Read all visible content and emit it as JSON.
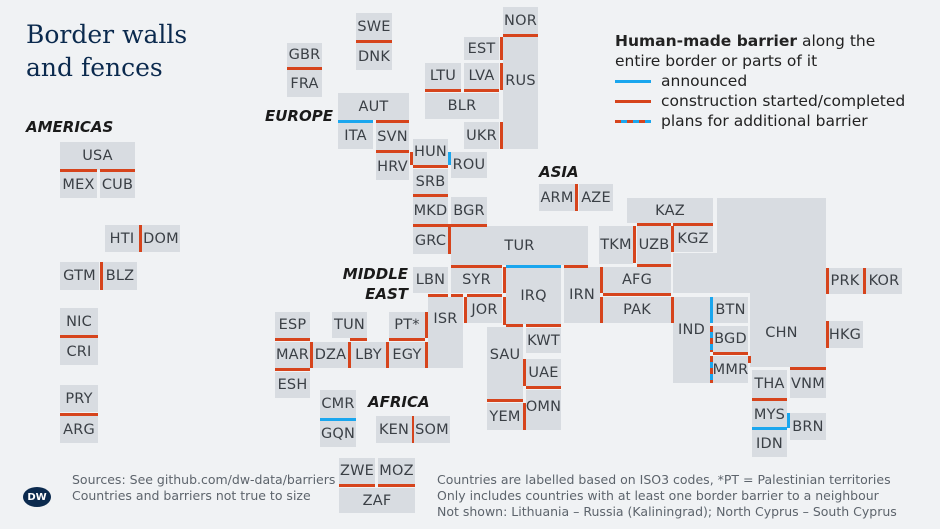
{
  "title": "Border walls and fences",
  "regions": {
    "americas": "AMERICAS",
    "europe": "EUROPE",
    "asia": "ASIA",
    "middle_east": "MIDDLE EAST",
    "africa": "AFRICA"
  },
  "legend": {
    "heading_bold": "Human-made barrier",
    "heading_rest": " along the entire border or parts of it",
    "items": [
      {
        "label": "announced",
        "status": "announced"
      },
      {
        "label": "construction started/completed",
        "status": "built"
      },
      {
        "label": "plans for additional barrier",
        "status": "mixed"
      }
    ]
  },
  "colors": {
    "announced": "#1aa6ee",
    "built": "#d6441c",
    "tile": "#d8dce1",
    "title": "#0b2a4e"
  },
  "countries": [
    "USA",
    "MEX",
    "CUB",
    "HTI",
    "DOM",
    "GTM",
    "BLZ",
    "NIC",
    "CRI",
    "PRY",
    "ARG",
    "GBR",
    "FRA",
    "SWE",
    "DNK",
    "NOR",
    "EST",
    "LTU",
    "LVA",
    "BLR",
    "RUS",
    "UKR",
    "AUT",
    "ITA",
    "SVN",
    "HRV",
    "HUN",
    "ROU",
    "SRB",
    "MKD",
    "BGR",
    "GRC",
    "TUR",
    "ARM",
    "AZE",
    "LBN",
    "SYR",
    "ISR",
    "JOR",
    "IRQ",
    "IRN",
    "PT*",
    "SAU",
    "KWT",
    "UAE",
    "OMN",
    "YEM",
    "ESP",
    "MAR",
    "ESH",
    "TUN",
    "DZA",
    "LBY",
    "EGY",
    "CMR",
    "GQN",
    "KEN",
    "SOM",
    "ZWE",
    "MOZ",
    "ZAF",
    "KAZ",
    "TKM",
    "UZB",
    "KGZ",
    "CHN",
    "AFG",
    "PAK",
    "IND",
    "BTN",
    "BGD",
    "MMR",
    "PRK",
    "KOR",
    "HKG",
    "THA",
    "VNM",
    "MYS",
    "BRN",
    "IDN"
  ],
  "barriers": [
    [
      "USA",
      "MEX",
      "built"
    ],
    [
      "USA",
      "CUB",
      "built"
    ],
    [
      "HTI",
      "DOM",
      "built"
    ],
    [
      "GTM",
      "BLZ",
      "built"
    ],
    [
      "NIC",
      "CRI",
      "built"
    ],
    [
      "PRY",
      "ARG",
      "built"
    ],
    [
      "GBR",
      "FRA",
      "built"
    ],
    [
      "SWE",
      "DNK",
      "built"
    ],
    [
      "NOR",
      "RUS",
      "built"
    ],
    [
      "EST",
      "RUS",
      "built"
    ],
    [
      "LVA",
      "RUS",
      "built"
    ],
    [
      "LTU",
      "BLR",
      "built"
    ],
    [
      "LVA",
      "BLR",
      "built"
    ],
    [
      "UKR",
      "RUS",
      "built"
    ],
    [
      "AUT",
      "ITA",
      "announced"
    ],
    [
      "AUT",
      "SVN",
      "built"
    ],
    [
      "SVN",
      "HRV",
      "built"
    ],
    [
      "HRV",
      "HUN",
      "built"
    ],
    [
      "HUN",
      "ROU",
      "announced"
    ],
    [
      "HUN",
      "SRB",
      "built"
    ],
    [
      "SRB",
      "MKD",
      "built"
    ],
    [
      "MKD",
      "GRC",
      "built"
    ],
    [
      "BGR",
      "TUR",
      "built"
    ],
    [
      "GRC",
      "TUR",
      "built"
    ],
    [
      "ARM",
      "AZE",
      "built"
    ],
    [
      "TUR",
      "SYR",
      "built"
    ],
    [
      "TUR",
      "IRQ",
      "announced"
    ],
    [
      "TUR",
      "IRN",
      "built"
    ],
    [
      "LBN",
      "ISR",
      "built"
    ],
    [
      "SYR",
      "ISR",
      "built"
    ],
    [
      "SYR",
      "JOR",
      "built"
    ],
    [
      "SYR",
      "IRQ",
      "built"
    ],
    [
      "ISR",
      "JOR",
      "built"
    ],
    [
      "JOR",
      "IRQ",
      "built"
    ],
    [
      "IRQ",
      "SAU",
      "built"
    ],
    [
      "IRQ",
      "KWT",
      "built"
    ],
    [
      "SAU",
      "UAE",
      "built"
    ],
    [
      "UAE",
      "OMN",
      "built"
    ],
    [
      "SAU",
      "YEM",
      "built"
    ],
    [
      "YEM",
      "OMN",
      "built"
    ],
    [
      "PT*",
      "ISR",
      "built"
    ],
    [
      "PT*",
      "EGY",
      "built"
    ],
    [
      "EGY",
      "ISR",
      "built"
    ],
    [
      "ESP",
      "MAR",
      "built"
    ],
    [
      "MAR",
      "ESH",
      "built"
    ],
    [
      "MAR",
      "DZA",
      "built"
    ],
    [
      "TUN",
      "LBY",
      "built"
    ],
    [
      "DZA",
      "LBY",
      "built"
    ],
    [
      "LBY",
      "EGY",
      "built"
    ],
    [
      "CMR",
      "GQN",
      "announced"
    ],
    [
      "KEN",
      "SOM",
      "built"
    ],
    [
      "ZWE",
      "ZAF",
      "built"
    ],
    [
      "MOZ",
      "ZAF",
      "built"
    ],
    [
      "KAZ",
      "UZB",
      "built"
    ],
    [
      "KAZ",
      "KGZ",
      "built"
    ],
    [
      "TKM",
      "UZB",
      "built"
    ],
    [
      "UZB",
      "KGZ",
      "built"
    ],
    [
      "UZB",
      "AFG",
      "built"
    ],
    [
      "IRN",
      "AFG",
      "built"
    ],
    [
      "IRN",
      "PAK",
      "built"
    ],
    [
      "AFG",
      "PAK",
      "built"
    ],
    [
      "PAK",
      "IND",
      "built"
    ],
    [
      "IND",
      "BTN",
      "announced"
    ],
    [
      "IND",
      "BGD",
      "mixed"
    ],
    [
      "IND",
      "MMR",
      "mixed"
    ],
    [
      "BGD",
      "MMR",
      "built"
    ],
    [
      "CHN",
      "MMR",
      "built"
    ],
    [
      "CHN",
      "PRK",
      "built"
    ],
    [
      "PRK",
      "KOR",
      "built"
    ],
    [
      "CHN",
      "HKG",
      "built"
    ],
    [
      "CHN",
      "VNM",
      "built"
    ],
    [
      "THA",
      "MYS",
      "built"
    ],
    [
      "MYS",
      "BRN",
      "announced"
    ],
    [
      "MYS",
      "IDN",
      "announced"
    ]
  ],
  "footer": {
    "sources": "Sources: See github.com/dw-data/barriers",
    "note_size": "Countries and barriers not true to size",
    "note_labels": "Countries are labelled based on ISO3 codes, *PT = Palestinian territories",
    "note_includes": "Only includes countries with at least one border barrier to a neighbour",
    "note_not_shown": "Not shown: Lithuania – Russia (Kaliningrad); North Cyprus – South Cyprus",
    "logo": "DW"
  }
}
